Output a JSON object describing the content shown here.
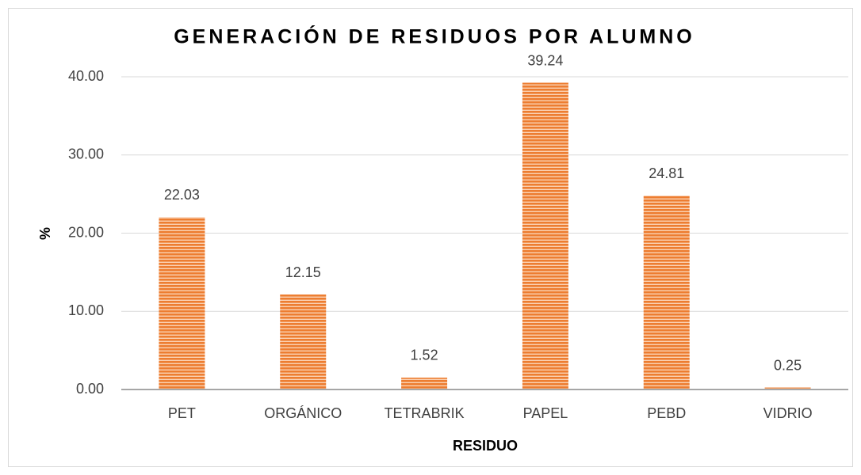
{
  "chart_data": {
    "type": "bar",
    "title": "GENERACIÓN DE RESIDUOS POR ALUMNO",
    "x_label": "RESIDUO",
    "y_label": "%",
    "categories": [
      "PET",
      "ORGÁNICO",
      "TETRABRIK",
      "PAPEL",
      "PEBD",
      "VIDRIO"
    ],
    "values": [
      22.03,
      12.15,
      1.52,
      39.24,
      24.81,
      0.25
    ],
    "color": "#ed7d31",
    "ylim": [
      0,
      40
    ],
    "yticks": [
      {
        "value": 0,
        "label": "0.00"
      },
      {
        "value": 10,
        "label": "10.00"
      },
      {
        "value": 20,
        "label": "20.00"
      },
      {
        "value": 30,
        "label": "30.00"
      },
      {
        "value": 40,
        "label": "40.00"
      }
    ],
    "grid": true
  }
}
